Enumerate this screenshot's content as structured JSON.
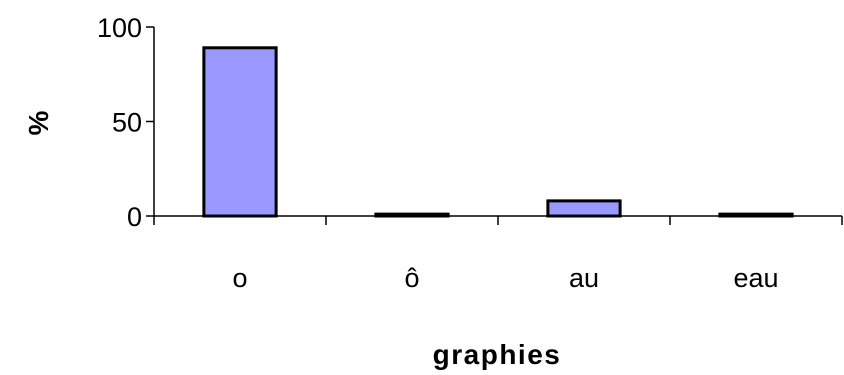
{
  "chart_data": {
    "type": "bar",
    "title": "",
    "xlabel": "graphies",
    "ylabel": "%",
    "categories": [
      "o",
      "ô",
      "au",
      "eau"
    ],
    "values": [
      89,
      1,
      8,
      1
    ],
    "ylim": [
      0,
      100
    ],
    "yticks": [
      0,
      50,
      100
    ],
    "grid": false,
    "legend": "none",
    "bar_color": "#9999ff",
    "bar_edge_color": "#000000"
  }
}
